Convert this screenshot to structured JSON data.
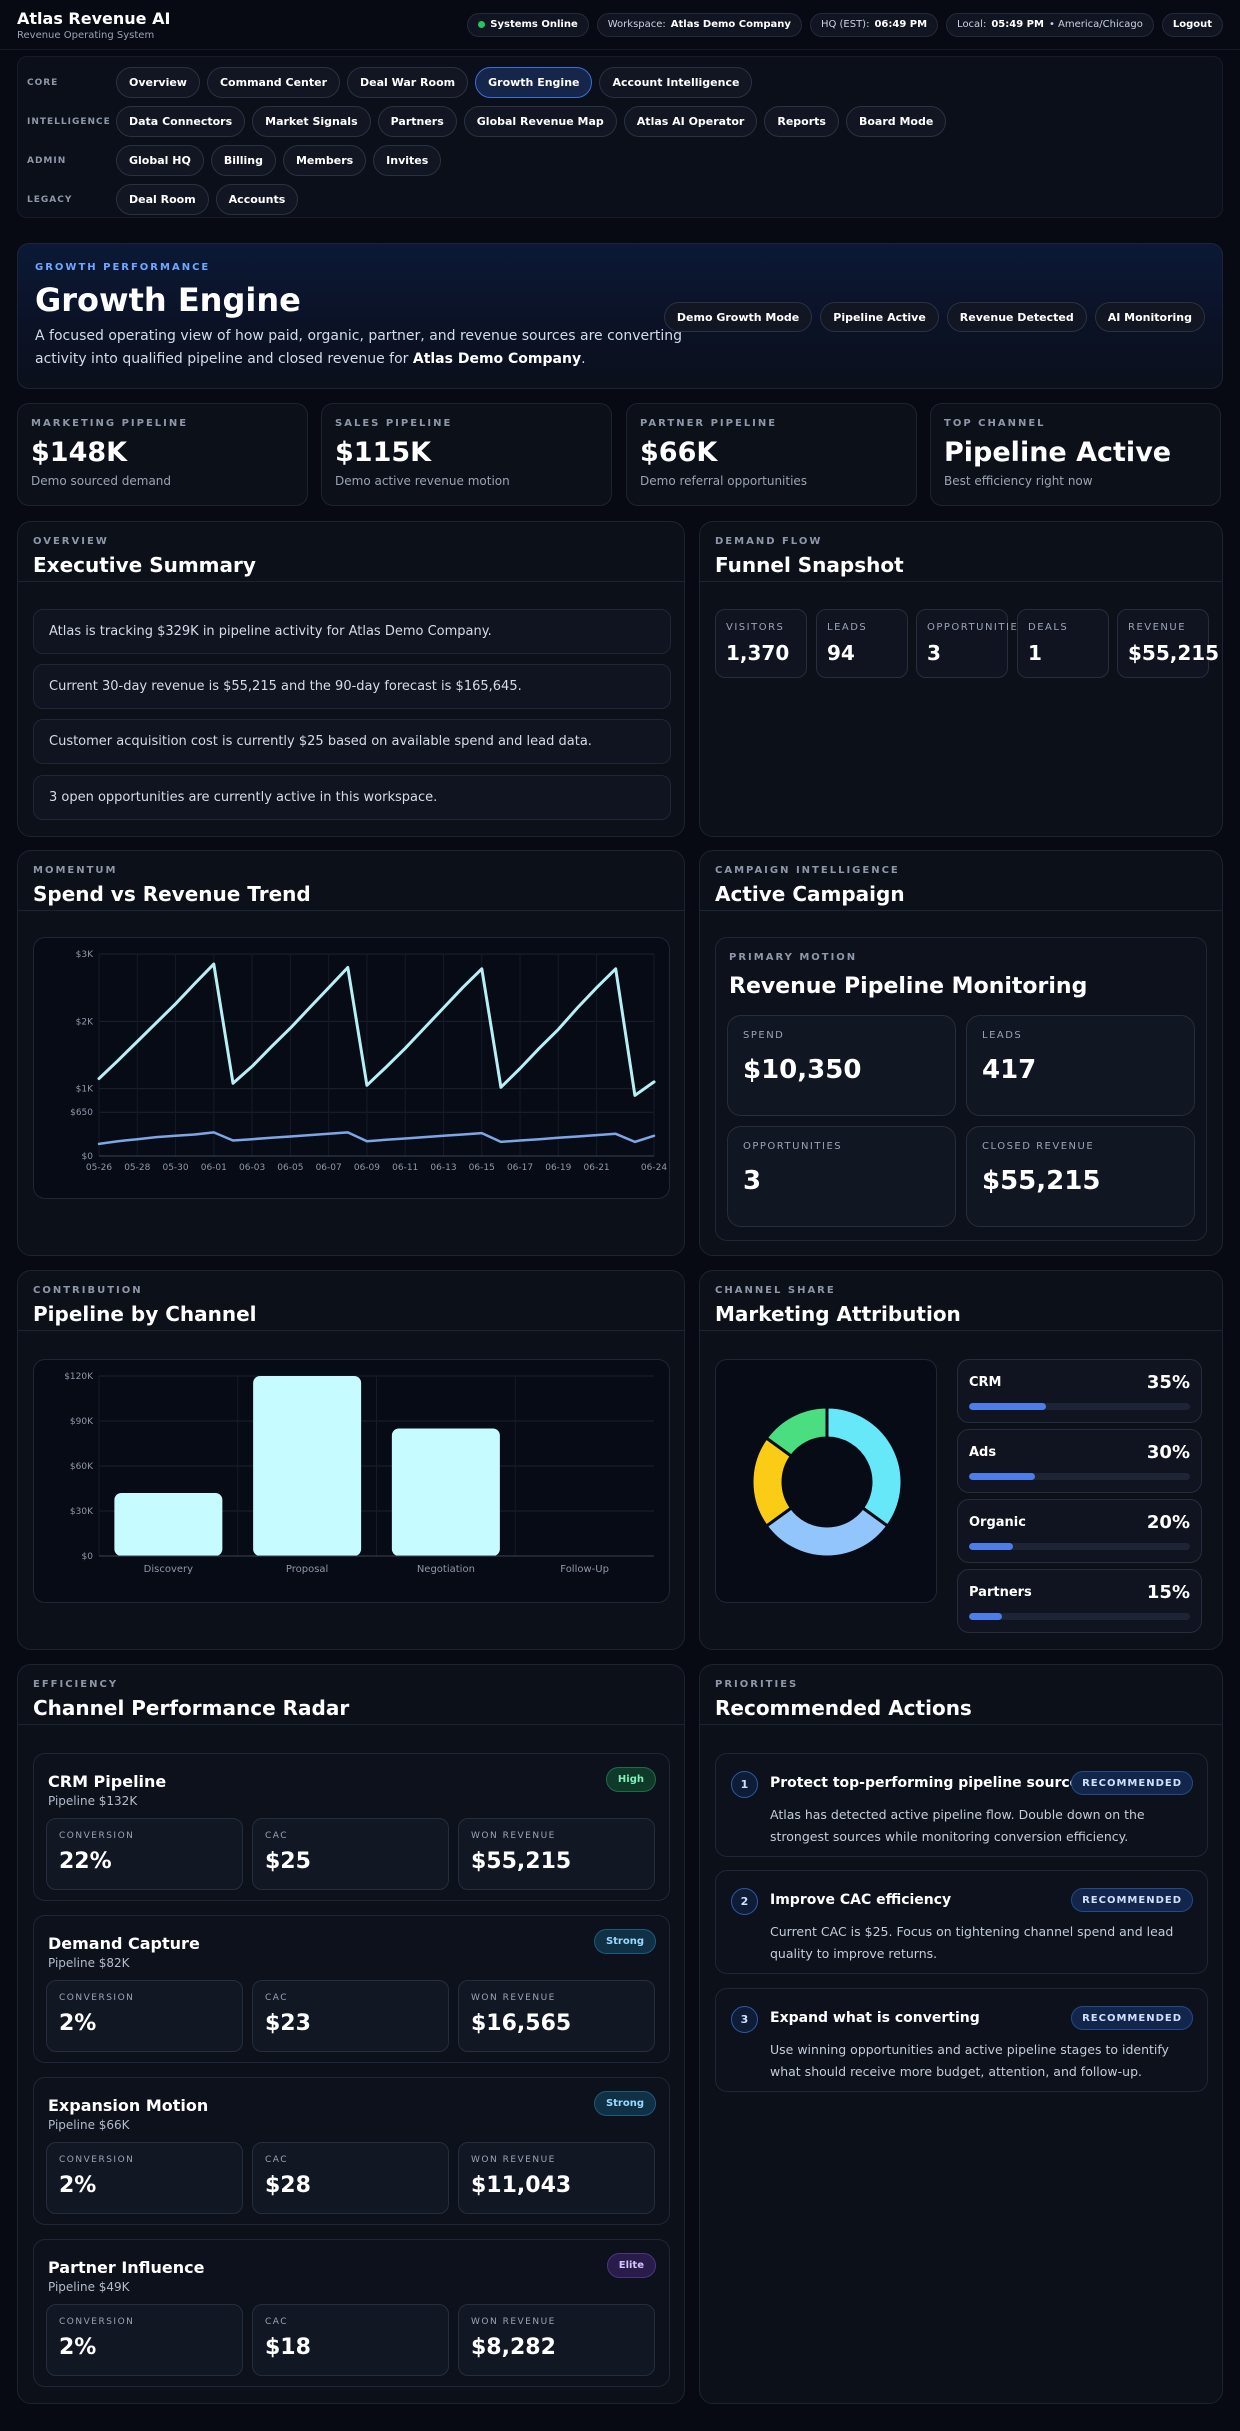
{
  "brand": {
    "title": "Atlas Revenue AI",
    "subtitle": "Revenue Operating System"
  },
  "topbar": {
    "status": "Systems Online",
    "workspace_label": "Workspace:",
    "workspace_value": "Atlas Demo Company",
    "hq_label": "HQ (EST):",
    "hq_time": "06:49 PM",
    "local_label": "Local:",
    "local_time": "05:49 PM",
    "local_zone": "• America/Chicago",
    "logout": "Logout"
  },
  "nav": {
    "core_label": "CORE",
    "core": [
      "Overview",
      "Command Center",
      "Deal War Room",
      "Growth Engine",
      "Account Intelligence"
    ],
    "intel_label": "INTELLIGENCE",
    "intel": [
      "Data Connectors",
      "Market Signals",
      "Partners",
      "Global Revenue Map",
      "Atlas AI Operator",
      "Reports",
      "Board Mode"
    ],
    "admin_label": "ADMIN",
    "admin": [
      "Global HQ",
      "Billing",
      "Members",
      "Invites"
    ],
    "legacy_label": "LEGACY",
    "legacy": [
      "Deal Room",
      "Accounts"
    ]
  },
  "hero": {
    "eyebrow": "GROWTH PERFORMANCE",
    "title": "Growth Engine",
    "desc": "A focused operating view of how paid, organic, partner, and revenue sources are converting activity into qualified pipeline and closed revenue for",
    "company": "Atlas Demo Company",
    "tags": [
      "Demo Growth Mode",
      "Pipeline Active",
      "Revenue Detected",
      "AI Monitoring"
    ]
  },
  "stats": [
    {
      "label": "MARKETING PIPELINE",
      "value": "$148K",
      "sub": "Demo sourced demand"
    },
    {
      "label": "SALES PIPELINE",
      "value": "$115K",
      "sub": "Demo active revenue motion"
    },
    {
      "label": "PARTNER PIPELINE",
      "value": "$66K",
      "sub": "Demo referral opportunities"
    },
    {
      "label": "TOP CHANNEL",
      "value": "Pipeline Active",
      "sub": "Best efficiency right now"
    }
  ],
  "summary": {
    "eyebrow": "OVERVIEW",
    "title": "Executive Summary",
    "items": [
      "Atlas is tracking $329K in pipeline activity for Atlas Demo Company.",
      "Current 30-day revenue is $55,215 and the 90-day forecast is $165,645.",
      "Customer acquisition cost is currently $25 based on available spend and lead data.",
      "3 open opportunities are currently active in this workspace."
    ]
  },
  "funnel": {
    "eyebrow": "DEMAND FLOW",
    "title": "Funnel Snapshot",
    "items": [
      {
        "label": "VISITORS",
        "value": "1,370"
      },
      {
        "label": "LEADS",
        "value": "94"
      },
      {
        "label": "OPPORTUNITIES",
        "value": "3"
      },
      {
        "label": "DEALS",
        "value": "1"
      },
      {
        "label": "REVENUE",
        "value": "$55,215"
      }
    ]
  },
  "trend": {
    "eyebrow": "MOMENTUM",
    "title": "Spend vs Revenue Trend"
  },
  "campaign": {
    "eyebrow": "CAMPAIGN INTELLIGENCE",
    "title": "Active Campaign",
    "motion_label": "PRIMARY MOTION",
    "motion": "Revenue Pipeline Monitoring",
    "metrics": [
      {
        "label": "SPEND",
        "value": "$10,350"
      },
      {
        "label": "LEADS",
        "value": "417"
      },
      {
        "label": "OPPORTUNITIES",
        "value": "3"
      },
      {
        "label": "CLOSED REVENUE",
        "value": "$55,215"
      }
    ]
  },
  "channel": {
    "eyebrow": "CONTRIBUTION",
    "title": "Pipeline by Channel"
  },
  "attribution": {
    "eyebrow": "CHANNEL SHARE",
    "title": "Marketing Attribution"
  },
  "radar": {
    "eyebrow": "EFFICIENCY",
    "title": "Channel Performance Radar",
    "conv_label": "CONVERSION",
    "cac_label": "CAC",
    "won_label": "WON REVENUE",
    "rows": [
      {
        "name": "CRM Pipeline",
        "pipeline": "Pipeline $132K",
        "badge": "High",
        "badge_class": "badge-high",
        "conversion": "22%",
        "cac": "$25",
        "won": "$55,215"
      },
      {
        "name": "Demand Capture",
        "pipeline": "Pipeline $82K",
        "badge": "Strong",
        "badge_class": "badge-strong",
        "conversion": "2%",
        "cac": "$23",
        "won": "$16,565"
      },
      {
        "name": "Expansion Motion",
        "pipeline": "Pipeline $66K",
        "badge": "Strong",
        "badge_class": "badge-strong",
        "conversion": "2%",
        "cac": "$28",
        "won": "$11,043"
      },
      {
        "name": "Partner Influence",
        "pipeline": "Pipeline $49K",
        "badge": "Elite",
        "badge_class": "badge-elite",
        "conversion": "2%",
        "cac": "$18",
        "won": "$8,282"
      }
    ]
  },
  "actions": {
    "eyebrow": "PRIORITIES",
    "title": "Recommended Actions",
    "items": [
      {
        "num": "1",
        "title": "Protect top-performing pipeline sources",
        "badge": "RECOMMENDED",
        "desc": "Atlas has detected active pipeline flow. Double down on the strongest sources while monitoring conversion efficiency."
      },
      {
        "num": "2",
        "title": "Improve CAC efficiency",
        "badge": "RECOMMENDED",
        "desc": "Current CAC is $25. Focus on tightening channel spend and lead quality to improve returns."
      },
      {
        "num": "3",
        "title": "Expand what is converting",
        "badge": "RECOMMENDED",
        "desc": "Use winning opportunities and active pipeline stages to identify what should receive more budget, attention, and follow-up."
      }
    ]
  },
  "colors": {
    "accent": "#3b6fd8",
    "revenue_line": "#b6f0f5",
    "spend_line": "#7ea6e6",
    "bar": "#c6fbff"
  },
  "chart_data": [
    {
      "type": "line",
      "x": [
        "05-26",
        "05-27",
        "05-28",
        "05-29",
        "05-30",
        "05-31",
        "06-01",
        "06-02",
        "06-03",
        "06-04",
        "06-05",
        "06-06",
        "06-07",
        "06-08",
        "06-09",
        "06-10",
        "06-11",
        "06-12",
        "06-13",
        "06-14",
        "06-15",
        "06-16",
        "06-17",
        "06-18",
        "06-19",
        "06-20",
        "06-21",
        "06-22",
        "06-23",
        "06-24"
      ],
      "xticks": [
        "05-26",
        "05-28",
        "05-30",
        "06-01",
        "06-03",
        "06-05",
        "06-07",
        "06-09",
        "06-11",
        "06-13",
        "06-15",
        "06-17",
        "06-19",
        "06-21",
        "06-24"
      ],
      "yticks": [
        "$0",
        "$650",
        "$1K",
        "$2K",
        "$3K"
      ],
      "ylim": [
        0,
        3000
      ],
      "series": [
        {
          "values": [
            1150,
            1420,
            1700,
            1980,
            2260,
            2560,
            2850,
            1080,
            1330,
            1620,
            1900,
            2200,
            2500,
            2800,
            1050,
            1320,
            1600,
            1900,
            2200,
            2500,
            2780,
            1020,
            1300,
            1600,
            1880,
            2200,
            2500,
            2780,
            900,
            1100
          ]
        },
        {
          "values": [
            180,
            220,
            250,
            280,
            300,
            320,
            350,
            230,
            250,
            270,
            290,
            310,
            330,
            350,
            220,
            240,
            260,
            280,
            300,
            320,
            340,
            210,
            230,
            250,
            270,
            290,
            310,
            330,
            210,
            300
          ]
        }
      ],
      "grid": true
    },
    {
      "type": "bar",
      "categories": [
        "Discovery",
        "Proposal",
        "Negotiation",
        "Follow-Up"
      ],
      "values": [
        42000,
        120000,
        85000,
        0
      ],
      "yticks": [
        "$0",
        "$30K",
        "$60K",
        "$90K",
        "$120K"
      ],
      "ylim": [
        0,
        120000
      ],
      "grid": true
    },
    {
      "type": "pie",
      "labels": [
        "CRM",
        "Ads",
        "Organic",
        "Partners"
      ],
      "values": [
        35,
        30,
        20,
        15
      ],
      "display": [
        "35%",
        "30%",
        "20%",
        "15%"
      ],
      "colors": [
        "#67e8f9",
        "#93c5fd",
        "#facc15",
        "#4ade80"
      ],
      "donut": true
    }
  ]
}
